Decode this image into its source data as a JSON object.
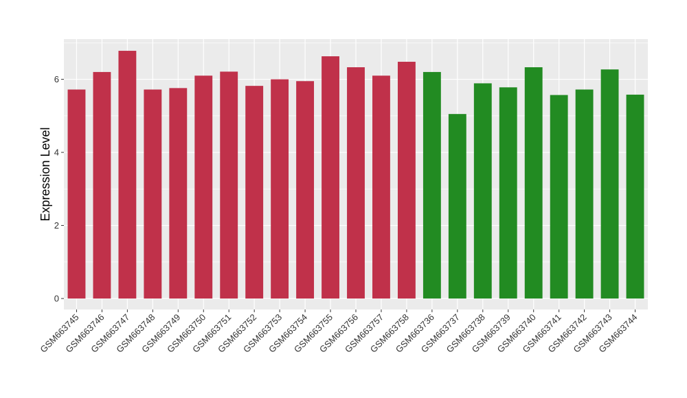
{
  "chart_data": {
    "type": "bar",
    "title": "",
    "xlabel": "",
    "ylabel": "Expression Level",
    "ylim": [
      -0.3,
      7.1
    ],
    "yticks": [
      0,
      2,
      4,
      6
    ],
    "grid": true,
    "legend": "none",
    "categories": [
      "GSM663745",
      "GSM663746",
      "GSM663747",
      "GSM663748",
      "GSM663749",
      "GSM663750",
      "GSM663751",
      "GSM663752",
      "GSM663753",
      "GSM663754",
      "GSM663755",
      "GSM663756",
      "GSM663757",
      "GSM663758",
      "GSM663736",
      "GSM663737",
      "GSM663738",
      "GSM663739",
      "GSM663740",
      "GSM663741",
      "GSM663742",
      "GSM663743",
      "GSM663744"
    ],
    "values": [
      5.72,
      6.2,
      6.78,
      5.72,
      5.76,
      6.1,
      6.21,
      5.82,
      6.0,
      5.95,
      6.63,
      6.33,
      6.1,
      6.48,
      6.2,
      5.05,
      5.89,
      5.78,
      6.33,
      5.57,
      5.72,
      6.27,
      5.58
    ],
    "colors": [
      "#c0314a",
      "#c0314a",
      "#c0314a",
      "#c0314a",
      "#c0314a",
      "#c0314a",
      "#c0314a",
      "#c0314a",
      "#c0314a",
      "#c0314a",
      "#c0314a",
      "#c0314a",
      "#c0314a",
      "#c0314a",
      "#228b22",
      "#228b22",
      "#228b22",
      "#228b22",
      "#228b22",
      "#228b22",
      "#228b22",
      "#228b22",
      "#228b22"
    ],
    "panel_background": "#ebebeb",
    "grid_color": "#ffffff"
  }
}
